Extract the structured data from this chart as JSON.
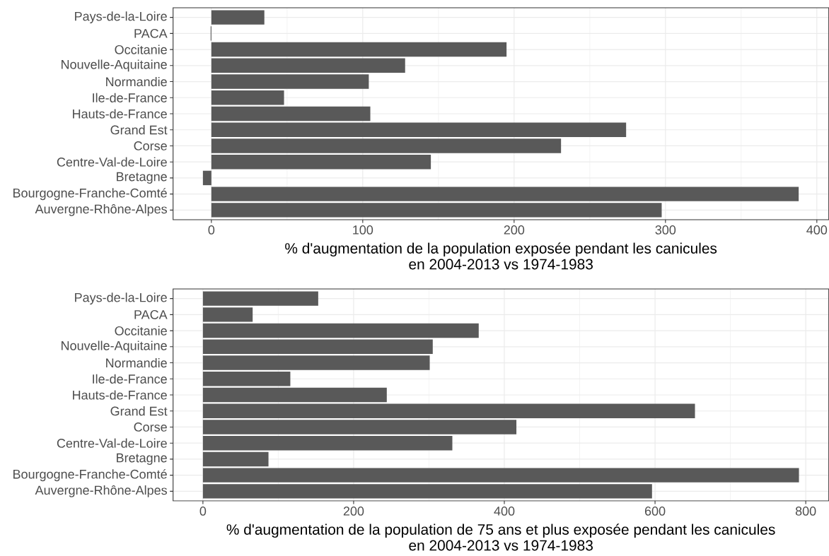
{
  "chart_data": [
    {
      "type": "bar",
      "orientation": "horizontal",
      "categories": [
        "Pays-de-la-Loire",
        "PACA",
        "Occitanie",
        "Nouvelle-Aquitaine",
        "Normandie",
        "Ile-de-France",
        "Hauts-de-France",
        "Grand Est",
        "Corse",
        "Centre-Val-de-Loire",
        "Bretagne",
        "Bourgogne-Franche-Comté",
        "Auvergne-Rhône-Alpes"
      ],
      "values": [
        35,
        -0.5,
        195,
        128,
        104,
        48,
        105,
        274,
        231,
        145,
        -5.6,
        388,
        297.5
      ],
      "color": "#595959",
      "xlim": [
        -25.3,
        407.9
      ],
      "xticks": [
        0,
        100,
        200,
        300,
        400
      ],
      "xlabel": "% d'augmentation de la population exposée pendant les canicules en 2004-2013 vs 1974-1983",
      "grid": true
    },
    {
      "type": "bar",
      "orientation": "horizontal",
      "categories": [
        "Pays-de-la-Loire",
        "PACA",
        "Occitanie",
        "Nouvelle-Aquitaine",
        "Normandie",
        "Ile-de-France",
        "Hauts-de-France",
        "Grand Est",
        "Corse",
        "Centre-Val-de-Loire",
        "Bretagne",
        "Bourgogne-Franche-Comté",
        "Auvergne-Rhône-Alpes"
      ],
      "values": [
        153,
        66,
        366,
        305,
        301,
        116,
        244,
        653,
        416,
        331,
        87,
        791,
        596
      ],
      "color": "#595959",
      "xlim": [
        -39.6,
        830.6
      ],
      "xticks": [
        0,
        200,
        400,
        600,
        800
      ],
      "xlabel": "% d'augmentation de la population de 75 ans et plus exposée pendant les canicules en 2004-2013 vs 1974-1983",
      "grid": true
    }
  ]
}
